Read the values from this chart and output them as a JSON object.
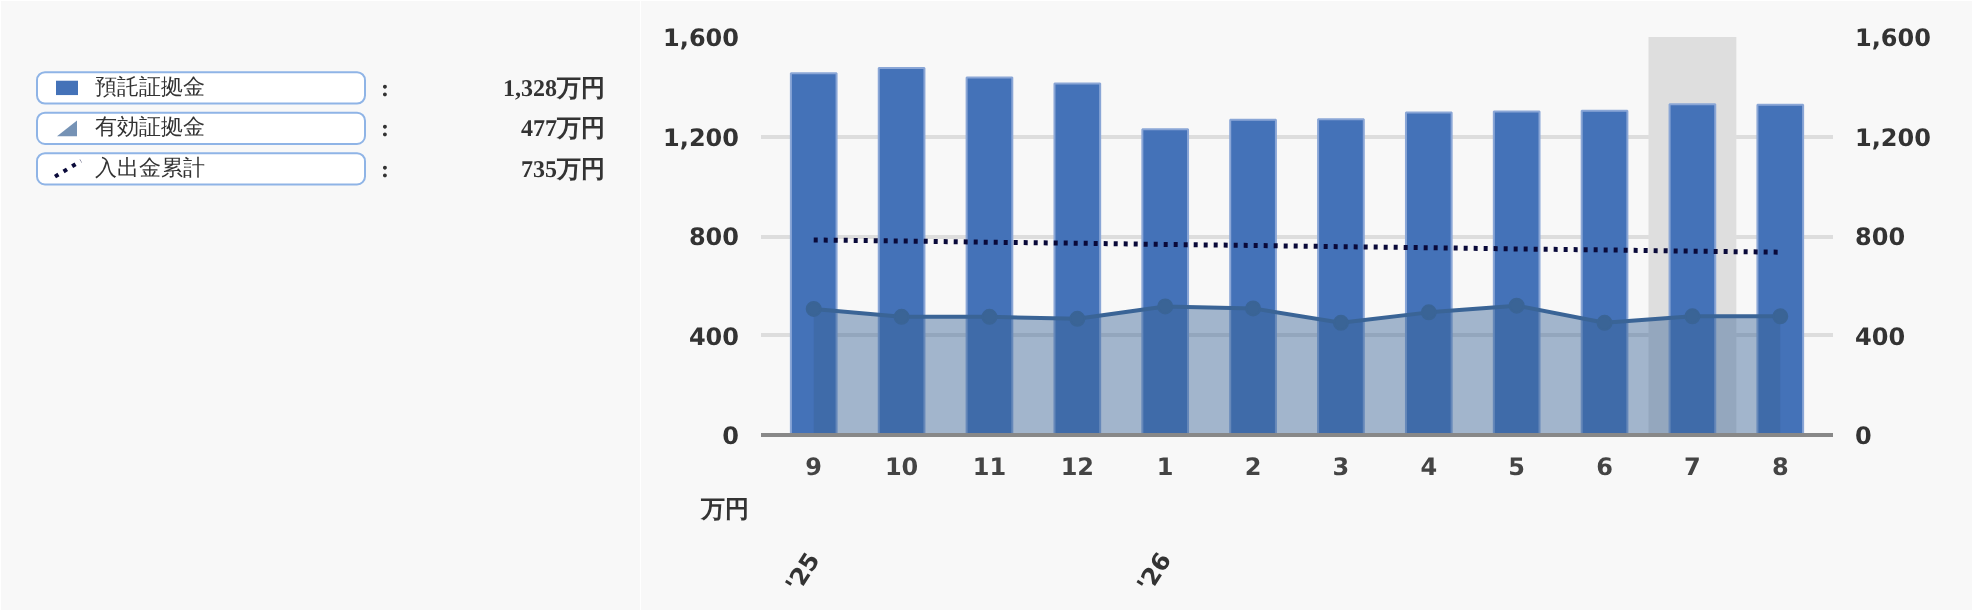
{
  "chart_data": {
    "type": "bar",
    "categories": [
      "9",
      "10",
      "11",
      "12",
      "1",
      "2",
      "3",
      "4",
      "5",
      "6",
      "7",
      "8"
    ],
    "series": [
      {
        "name": "預託証拠金",
        "color": "#4472b8",
        "values": [
          1454,
          1475,
          1437,
          1413,
          1229,
          1267,
          1269,
          1296,
          1301,
          1304,
          1330,
          1328
        ]
      },
      {
        "name": "有効証拠金",
        "type": "area",
        "color": "#3a6496",
        "marker": "circle",
        "values": [
          507,
          475,
          475,
          467,
          517,
          509,
          451,
          493,
          520,
          451,
          477,
          477
        ]
      },
      {
        "name": "入出金累計",
        "type": "line",
        "color": "#0a0a3a",
        "line_style": "dotted",
        "values": [
          784,
          780,
          775,
          771,
          766,
          762,
          757,
          753,
          748,
          744,
          739,
          735
        ]
      }
    ],
    "ylabel": "万円",
    "ylim": [
      0,
      1600
    ],
    "yticks": [
      0,
      {
        "value": 400,
        "label": "400"
      },
      {
        "value": 800,
        "label": "800"
      },
      {
        "value": 1200,
        "label": "1,200"
      },
      {
        "value": 1600,
        "label": "1,600"
      }
    ],
    "y2lim": [
      0,
      1600
    ],
    "y2ticks": [
      0,
      {
        "value": 400,
        "label": "400"
      },
      {
        "value": 800,
        "label": "800"
      },
      {
        "value": 1200,
        "label": "1,200"
      },
      {
        "value": 1600,
        "label": "1,600"
      }
    ],
    "grid": "y",
    "legend": "left",
    "bands": [
      {
        "axis": "x",
        "from": "7",
        "to": "7",
        "color": "#dedede"
      }
    ],
    "annotations": [
      ":",
      "1,328万円",
      ":",
      "477万円",
      ":",
      "735万円",
      "'25",
      "'26"
    ]
  }
}
